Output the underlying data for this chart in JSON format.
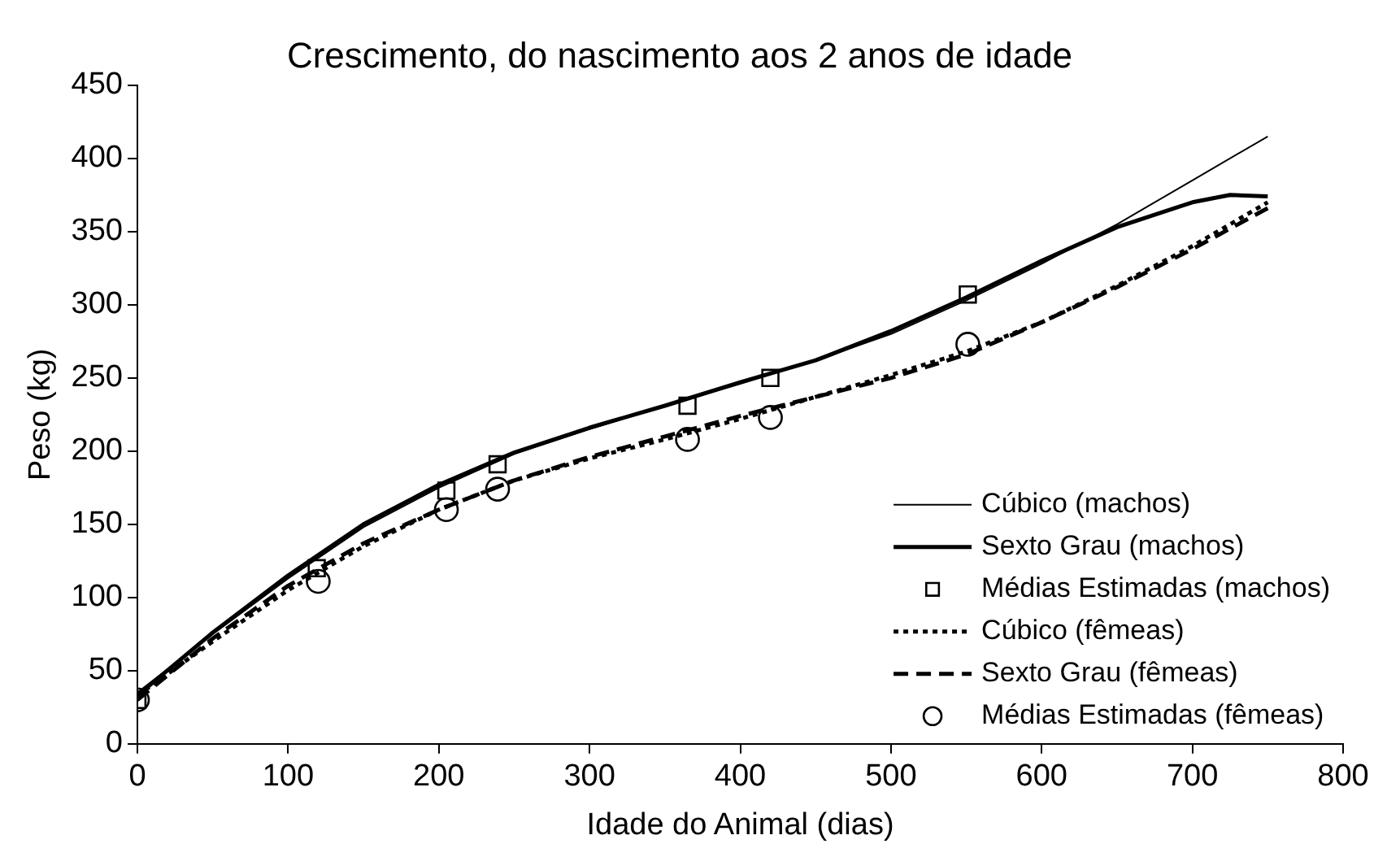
{
  "chart_data": {
    "type": "line",
    "title": "Crescimento, do nascimento aos 2 anos de idade",
    "xlabel": "Idade do Animal (dias)",
    "ylabel": "Peso (kg)",
    "xlim": [
      0,
      800
    ],
    "xticks": [
      0,
      100,
      200,
      300,
      400,
      500,
      600,
      700,
      800
    ],
    "ylim": [
      0,
      450
    ],
    "yticks": [
      0,
      50,
      100,
      150,
      200,
      250,
      300,
      350,
      400,
      450
    ],
    "grid": false,
    "legend": "bottom right",
    "series": [
      {
        "name": "Cúbico (machos)",
        "color": "#000000",
        "line_style": "solid",
        "marker": "none",
        "x": [
          0,
          50,
          100,
          150,
          200,
          250,
          300,
          350,
          400,
          450,
          500,
          550,
          600,
          650,
          700,
          750
        ],
        "values": [
          35,
          75,
          113,
          148,
          175,
          198,
          215,
          231,
          246,
          262,
          280,
          303,
          328,
          355,
          385,
          415
        ]
      },
      {
        "name": "Sexto Grau (machos)",
        "color": "#000000",
        "line_style": "solid",
        "marker": "none",
        "x": [
          0,
          50,
          100,
          150,
          200,
          250,
          300,
          350,
          400,
          450,
          500,
          550,
          600,
          650,
          700,
          725,
          750
        ],
        "values": [
          33,
          76,
          115,
          150,
          177,
          199,
          216,
          231,
          247,
          262,
          282,
          305,
          330,
          353,
          370,
          375,
          374
        ]
      },
      {
        "name": "Médias Estimadas (machos)",
        "type": "scatter",
        "color": "#000000",
        "marker": "square",
        "x": [
          0,
          119,
          205,
          239,
          365,
          420,
          551
        ],
        "values": [
          30,
          120,
          173,
          191,
          231,
          250,
          307
        ]
      },
      {
        "name": "Cúbico (fêmeas)",
        "color": "#000000",
        "line_style": "dotted",
        "marker": "none",
        "x": [
          0,
          50,
          100,
          150,
          200,
          250,
          300,
          350,
          400,
          450,
          500,
          550,
          600,
          650,
          700,
          750
        ],
        "values": [
          33,
          70,
          105,
          135,
          160,
          180,
          195,
          208,
          222,
          237,
          252,
          268,
          288,
          313,
          340,
          370
        ]
      },
      {
        "name": "Sexto Grau (fêmeas)",
        "color": "#000000",
        "line_style": "dashed",
        "marker": "none",
        "x": [
          0,
          50,
          100,
          150,
          200,
          250,
          300,
          350,
          400,
          450,
          500,
          550,
          600,
          650,
          700,
          750
        ],
        "values": [
          30,
          72,
          108,
          137,
          160,
          180,
          196,
          210,
          224,
          237,
          250,
          266,
          288,
          312,
          338,
          366
        ]
      },
      {
        "name": "Médias Estimadas (fêmeas)",
        "type": "scatter",
        "color": "#000000",
        "marker": "circle",
        "x": [
          0,
          120,
          205,
          239,
          365,
          420,
          551
        ],
        "values": [
          30,
          111,
          160,
          174,
          208,
          223,
          273
        ]
      }
    ]
  }
}
